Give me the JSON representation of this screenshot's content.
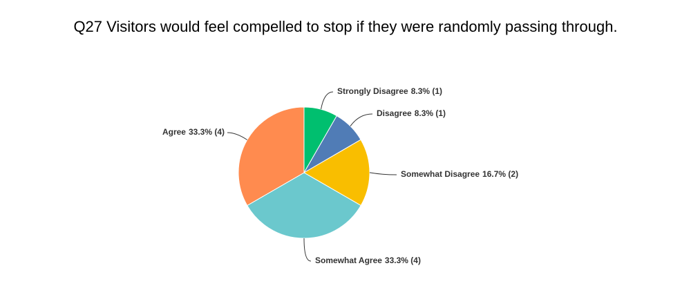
{
  "chart_data": {
    "type": "pie",
    "title": "Q27 Visitors would feel compelled to stop if they were randomly passing through.",
    "categories": [
      "Strongly Disagree",
      "Disagree",
      "Somewhat Disagree",
      "Somewhat Agree",
      "Agree"
    ],
    "values": [
      8.3,
      8.3,
      16.7,
      33.3,
      33.3
    ],
    "value_labels": [
      "8.3% (1)",
      "8.3% (1)",
      "16.7% (2)",
      "33.3% (4)",
      "33.3% (4)"
    ],
    "colors": [
      "#00bf6f",
      "#507cb6",
      "#f9be00",
      "#6bc8cd",
      "#ff8b4f"
    ]
  }
}
